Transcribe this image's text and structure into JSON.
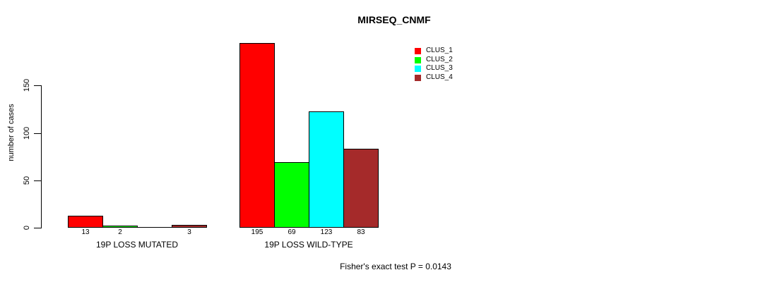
{
  "title": "MIRSEQ_CNMF",
  "footer": "Fisher's exact test P = 0.0143",
  "y_axis": {
    "label": "number of cases",
    "ticks": [
      0,
      50,
      100,
      150
    ]
  },
  "legend": {
    "items": [
      {
        "label": "CLUS_1",
        "color": "#FF0000"
      },
      {
        "label": "CLUS_2",
        "color": "#00FF00"
      },
      {
        "label": "CLUS_3",
        "color": "#00FFFF"
      },
      {
        "label": "CLUS_4",
        "color": "#A52A2A"
      }
    ]
  },
  "groups": [
    {
      "label": "19P LOSS MUTATED",
      "bars": [
        {
          "cluster": "CLUS_1",
          "value": 13,
          "display": "13"
        },
        {
          "cluster": "CLUS_2",
          "value": 2,
          "display": "2"
        },
        {
          "cluster": "CLUS_3",
          "value": 0,
          "display": ""
        },
        {
          "cluster": "CLUS_4",
          "value": 3,
          "display": "3"
        }
      ]
    },
    {
      "label": "19P LOSS WILD-TYPE",
      "bars": [
        {
          "cluster": "CLUS_1",
          "value": 195,
          "display": "195"
        },
        {
          "cluster": "CLUS_2",
          "value": 69,
          "display": "69"
        },
        {
          "cluster": "CLUS_3",
          "value": 123,
          "display": "123"
        },
        {
          "cluster": "CLUS_4",
          "value": 83,
          "display": "83"
        }
      ]
    }
  ],
  "chart_data": {
    "type": "bar",
    "title": "MIRSEQ_CNMF",
    "categories": [
      "19P LOSS MUTATED",
      "19P LOSS WILD-TYPE"
    ],
    "series": [
      {
        "name": "CLUS_1",
        "color": "#FF0000",
        "values": [
          13,
          195
        ]
      },
      {
        "name": "CLUS_2",
        "color": "#00FF00",
        "values": [
          2,
          69
        ]
      },
      {
        "name": "CLUS_3",
        "color": "#00FFFF",
        "values": [
          0,
          123
        ]
      },
      {
        "name": "CLUS_4",
        "color": "#A52A2A",
        "values": [
          3,
          83
        ]
      }
    ],
    "xlabel": "",
    "ylabel": "number of cases",
    "ylim": [
      0,
      208
    ],
    "yticks": [
      0,
      50,
      100,
      150
    ],
    "grid": false,
    "bar_borders": "black",
    "bar_value_labels": true,
    "legend_position": "top-right",
    "annotation": "Fisher's exact test P = 0.0143"
  }
}
